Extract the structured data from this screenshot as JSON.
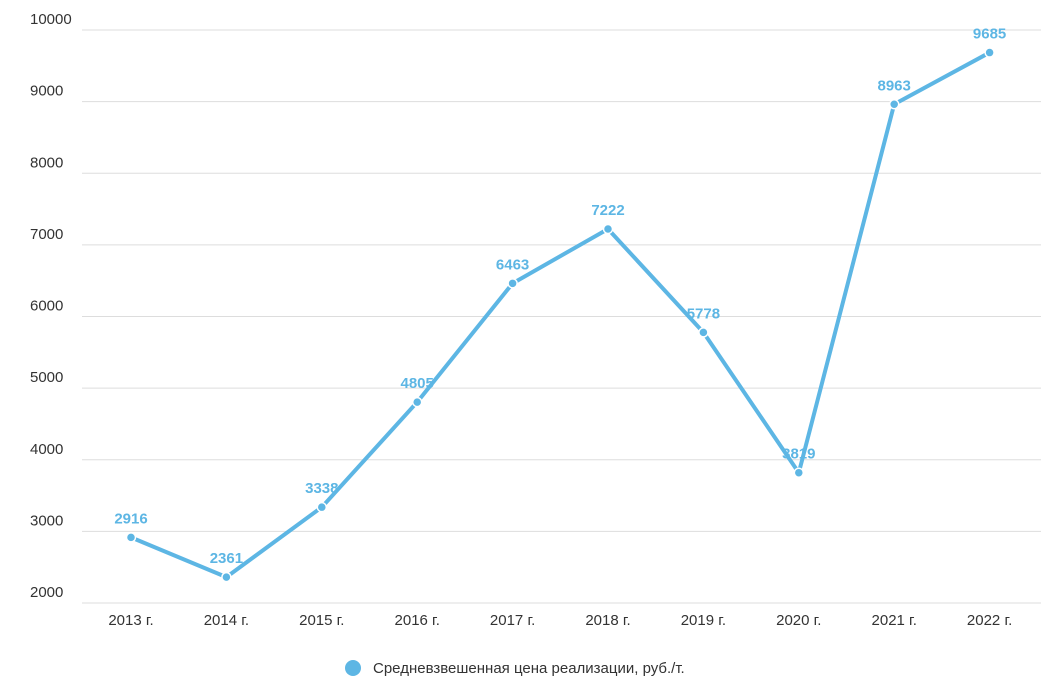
{
  "chart_data": {
    "type": "line",
    "title": "",
    "xlabel": "",
    "ylabel": "",
    "categories": [
      "2013 г.",
      "2014 г.",
      "2015 г.",
      "2016 г.",
      "2017 г.",
      "2018 г.",
      "2019 г.",
      "2020 г.",
      "2021 г.",
      "2022 г."
    ],
    "series": [
      {
        "name": "Средневзвешенная цена реализации, руб./т.",
        "values": [
          2916,
          2361,
          3338,
          4805,
          6463,
          7222,
          5778,
          3819,
          8963,
          9685
        ],
        "color": "#5db6e4"
      }
    ],
    "ylim": [
      2000,
      10000
    ],
    "yticks": [
      2000,
      3000,
      4000,
      5000,
      6000,
      7000,
      8000,
      9000,
      10000
    ],
    "grid": true,
    "legend_position": "bottom-center",
    "data_labels": true
  }
}
